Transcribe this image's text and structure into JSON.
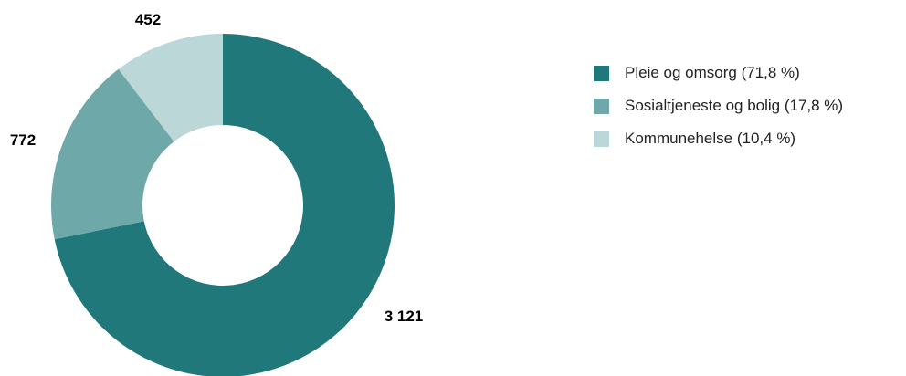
{
  "chart_data": {
    "type": "pie",
    "style": "donut",
    "categories": [
      "Pleie og omsorg",
      "Sosialtjeneste og bolig",
      "Kommunehelse"
    ],
    "values": [
      3121,
      772,
      452
    ],
    "value_labels": [
      "3 121",
      "772",
      "452"
    ],
    "percentages": [
      71.8,
      17.8,
      10.4
    ],
    "colors": [
      "#21787a",
      "#6ea8a9",
      "#bcd7d8"
    ],
    "legend_labels": [
      "Pleie og omsorg (71,8 %)",
      "Sosialtjeneste og bolig (17,8 %)",
      "Kommunehelse (10,4 %)"
    ],
    "legend_position": "right",
    "start_angle": "12 o'clock",
    "direction": "clockwise"
  }
}
